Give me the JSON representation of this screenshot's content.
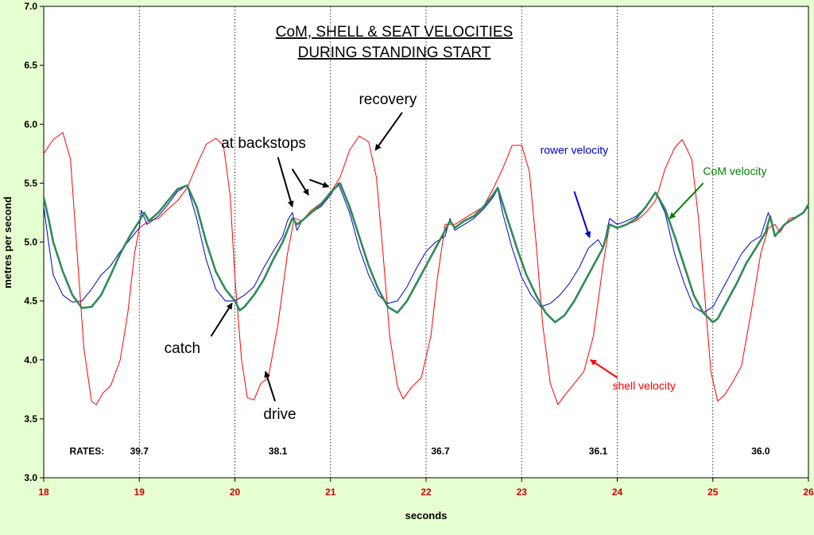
{
  "chart_data": {
    "type": "line",
    "title_line1": "CoM, SHELL & SEAT VELOCITIES",
    "title_line2": "DURING STANDING START",
    "xlabel": "seconds",
    "ylabel": "metres per second",
    "xlim": [
      18,
      26
    ],
    "ylim": [
      3.0,
      7.0
    ],
    "x_ticks": [
      "18",
      "19",
      "20",
      "21",
      "22",
      "23",
      "24",
      "25",
      "26"
    ],
    "y_ticks": [
      "3.0",
      "3.5",
      "4.0",
      "4.5",
      "5.0",
      "5.5",
      "6.0",
      "6.5",
      "7.0"
    ],
    "grid": "vertical dotted lines",
    "rates_label": "RATES:",
    "rates": [
      {
        "x": 19.0,
        "value": "39.7"
      },
      {
        "x": 20.45,
        "value": "38.1"
      },
      {
        "x": 22.15,
        "value": "36.7"
      },
      {
        "x": 23.8,
        "value": "36.1"
      },
      {
        "x": 25.5,
        "value": "36.0"
      }
    ],
    "series": [
      {
        "id": "shell",
        "color": "#ff0000",
        "points": [
          [
            18.0,
            5.75
          ],
          [
            18.1,
            5.87
          ],
          [
            18.2,
            5.93
          ],
          [
            18.28,
            5.7
          ],
          [
            18.35,
            4.9
          ],
          [
            18.42,
            4.1
          ],
          [
            18.5,
            3.65
          ],
          [
            18.55,
            3.62
          ],
          [
            18.62,
            3.72
          ],
          [
            18.7,
            3.78
          ],
          [
            18.8,
            4.0
          ],
          [
            18.88,
            4.4
          ],
          [
            18.95,
            4.9
          ],
          [
            19.0,
            5.12
          ],
          [
            19.1,
            5.18
          ],
          [
            19.2,
            5.2
          ],
          [
            19.3,
            5.28
          ],
          [
            19.4,
            5.35
          ],
          [
            19.5,
            5.46
          ],
          [
            19.6,
            5.65
          ],
          [
            19.7,
            5.83
          ],
          [
            19.8,
            5.88
          ],
          [
            19.88,
            5.82
          ],
          [
            19.95,
            5.4
          ],
          [
            20.0,
            4.7
          ],
          [
            20.07,
            4.0
          ],
          [
            20.13,
            3.68
          ],
          [
            20.2,
            3.66
          ],
          [
            20.27,
            3.8
          ],
          [
            20.35,
            3.85
          ],
          [
            20.45,
            4.3
          ],
          [
            20.55,
            4.9
          ],
          [
            20.62,
            5.2
          ],
          [
            20.7,
            5.18
          ],
          [
            20.8,
            5.27
          ],
          [
            20.9,
            5.33
          ],
          [
            21.0,
            5.42
          ],
          [
            21.1,
            5.55
          ],
          [
            21.2,
            5.78
          ],
          [
            21.3,
            5.9
          ],
          [
            21.4,
            5.85
          ],
          [
            21.48,
            5.55
          ],
          [
            21.55,
            4.9
          ],
          [
            21.62,
            4.2
          ],
          [
            21.7,
            3.78
          ],
          [
            21.76,
            3.67
          ],
          [
            21.85,
            3.77
          ],
          [
            21.95,
            3.85
          ],
          [
            22.05,
            4.2
          ],
          [
            22.12,
            4.7
          ],
          [
            22.2,
            5.15
          ],
          [
            22.3,
            5.15
          ],
          [
            22.4,
            5.2
          ],
          [
            22.5,
            5.25
          ],
          [
            22.6,
            5.3
          ],
          [
            22.7,
            5.45
          ],
          [
            22.8,
            5.62
          ],
          [
            22.9,
            5.82
          ],
          [
            23.0,
            5.82
          ],
          [
            23.08,
            5.6
          ],
          [
            23.15,
            5.0
          ],
          [
            23.22,
            4.3
          ],
          [
            23.3,
            3.8
          ],
          [
            23.38,
            3.62
          ],
          [
            23.45,
            3.7
          ],
          [
            23.55,
            3.8
          ],
          [
            23.65,
            3.9
          ],
          [
            23.75,
            4.2
          ],
          [
            23.85,
            4.8
          ],
          [
            23.92,
            5.15
          ],
          [
            24.0,
            5.12
          ],
          [
            24.1,
            5.15
          ],
          [
            24.2,
            5.18
          ],
          [
            24.3,
            5.25
          ],
          [
            24.4,
            5.35
          ],
          [
            24.5,
            5.62
          ],
          [
            24.6,
            5.8
          ],
          [
            24.68,
            5.87
          ],
          [
            24.78,
            5.7
          ],
          [
            24.85,
            5.2
          ],
          [
            24.92,
            4.5
          ],
          [
            24.98,
            3.9
          ],
          [
            25.05,
            3.65
          ],
          [
            25.12,
            3.7
          ],
          [
            25.2,
            3.8
          ],
          [
            25.3,
            3.95
          ],
          [
            25.4,
            4.4
          ],
          [
            25.5,
            4.9
          ],
          [
            25.58,
            5.12
          ],
          [
            25.65,
            5.15
          ],
          [
            25.7,
            5.08
          ],
          [
            25.8,
            5.2
          ],
          [
            25.9,
            5.22
          ],
          [
            26.0,
            5.3
          ]
        ]
      },
      {
        "id": "rower",
        "color": "#0000cc",
        "points": [
          [
            18.0,
            5.3
          ],
          [
            18.05,
            5.0
          ],
          [
            18.1,
            4.72
          ],
          [
            18.2,
            4.55
          ],
          [
            18.3,
            4.49
          ],
          [
            18.4,
            4.5
          ],
          [
            18.5,
            4.6
          ],
          [
            18.6,
            4.72
          ],
          [
            18.7,
            4.8
          ],
          [
            18.8,
            4.92
          ],
          [
            18.9,
            5.02
          ],
          [
            19.0,
            5.12
          ],
          [
            19.02,
            5.27
          ],
          [
            19.08,
            5.15
          ],
          [
            19.2,
            5.22
          ],
          [
            19.3,
            5.32
          ],
          [
            19.4,
            5.43
          ],
          [
            19.5,
            5.48
          ],
          [
            19.6,
            5.2
          ],
          [
            19.7,
            4.85
          ],
          [
            19.8,
            4.6
          ],
          [
            19.9,
            4.5
          ],
          [
            20.0,
            4.5
          ],
          [
            20.1,
            4.55
          ],
          [
            20.2,
            4.62
          ],
          [
            20.3,
            4.78
          ],
          [
            20.4,
            4.92
          ],
          [
            20.5,
            5.05
          ],
          [
            20.55,
            5.18
          ],
          [
            20.6,
            5.25
          ],
          [
            20.65,
            5.1
          ],
          [
            20.7,
            5.18
          ],
          [
            20.8,
            5.25
          ],
          [
            20.9,
            5.3
          ],
          [
            21.0,
            5.4
          ],
          [
            21.08,
            5.5
          ],
          [
            21.2,
            5.25
          ],
          [
            21.3,
            4.95
          ],
          [
            21.4,
            4.72
          ],
          [
            21.5,
            4.55
          ],
          [
            21.6,
            4.48
          ],
          [
            21.7,
            4.5
          ],
          [
            21.8,
            4.62
          ],
          [
            21.9,
            4.78
          ],
          [
            22.0,
            4.92
          ],
          [
            22.1,
            5.0
          ],
          [
            22.2,
            5.05
          ],
          [
            22.25,
            5.2
          ],
          [
            22.3,
            5.1
          ],
          [
            22.4,
            5.15
          ],
          [
            22.5,
            5.2
          ],
          [
            22.6,
            5.28
          ],
          [
            22.7,
            5.38
          ],
          [
            22.75,
            5.45
          ],
          [
            22.8,
            5.25
          ],
          [
            22.9,
            4.95
          ],
          [
            23.0,
            4.7
          ],
          [
            23.1,
            4.55
          ],
          [
            23.2,
            4.45
          ],
          [
            23.3,
            4.48
          ],
          [
            23.4,
            4.55
          ],
          [
            23.5,
            4.65
          ],
          [
            23.6,
            4.78
          ],
          [
            23.7,
            4.95
          ],
          [
            23.8,
            5.02
          ],
          [
            23.85,
            4.95
          ],
          [
            23.92,
            5.2
          ],
          [
            24.0,
            5.15
          ],
          [
            24.1,
            5.18
          ],
          [
            24.2,
            5.22
          ],
          [
            24.3,
            5.3
          ],
          [
            24.4,
            5.42
          ],
          [
            24.5,
            5.25
          ],
          [
            24.6,
            4.9
          ],
          [
            24.7,
            4.65
          ],
          [
            24.8,
            4.45
          ],
          [
            24.9,
            4.4
          ],
          [
            25.0,
            4.45
          ],
          [
            25.1,
            4.6
          ],
          [
            25.2,
            4.75
          ],
          [
            25.3,
            4.9
          ],
          [
            25.4,
            5.0
          ],
          [
            25.5,
            5.05
          ],
          [
            25.58,
            5.25
          ],
          [
            25.65,
            5.05
          ],
          [
            25.75,
            5.15
          ],
          [
            25.85,
            5.2
          ],
          [
            25.95,
            5.25
          ],
          [
            26.0,
            5.3
          ]
        ]
      },
      {
        "id": "com",
        "color": "#2e8b57",
        "points": [
          [
            18.0,
            5.38
          ],
          [
            18.05,
            5.2
          ],
          [
            18.1,
            5.0
          ],
          [
            18.2,
            4.75
          ],
          [
            18.3,
            4.55
          ],
          [
            18.4,
            4.44
          ],
          [
            18.5,
            4.45
          ],
          [
            18.6,
            4.55
          ],
          [
            18.7,
            4.72
          ],
          [
            18.8,
            4.9
          ],
          [
            18.9,
            5.05
          ],
          [
            19.0,
            5.18
          ],
          [
            19.05,
            5.25
          ],
          [
            19.1,
            5.18
          ],
          [
            19.2,
            5.25
          ],
          [
            19.3,
            5.35
          ],
          [
            19.4,
            5.45
          ],
          [
            19.5,
            5.48
          ],
          [
            19.6,
            5.3
          ],
          [
            19.7,
            5.0
          ],
          [
            19.8,
            4.75
          ],
          [
            19.9,
            4.6
          ],
          [
            20.0,
            4.5
          ],
          [
            20.05,
            4.42
          ],
          [
            20.1,
            4.45
          ],
          [
            20.2,
            4.55
          ],
          [
            20.3,
            4.68
          ],
          [
            20.4,
            4.85
          ],
          [
            20.5,
            5.0
          ],
          [
            20.6,
            5.2
          ],
          [
            20.65,
            5.15
          ],
          [
            20.7,
            5.18
          ],
          [
            20.8,
            5.25
          ],
          [
            20.9,
            5.32
          ],
          [
            21.0,
            5.42
          ],
          [
            21.1,
            5.5
          ],
          [
            21.2,
            5.3
          ],
          [
            21.3,
            5.05
          ],
          [
            21.4,
            4.8
          ],
          [
            21.5,
            4.6
          ],
          [
            21.6,
            4.45
          ],
          [
            21.7,
            4.4
          ],
          [
            21.8,
            4.5
          ],
          [
            21.9,
            4.65
          ],
          [
            22.0,
            4.8
          ],
          [
            22.1,
            4.95
          ],
          [
            22.2,
            5.1
          ],
          [
            22.25,
            5.18
          ],
          [
            22.3,
            5.12
          ],
          [
            22.4,
            5.18
          ],
          [
            22.5,
            5.22
          ],
          [
            22.6,
            5.3
          ],
          [
            22.7,
            5.4
          ],
          [
            22.75,
            5.46
          ],
          [
            22.85,
            5.2
          ],
          [
            22.95,
            4.95
          ],
          [
            23.05,
            4.72
          ],
          [
            23.15,
            4.55
          ],
          [
            23.25,
            4.4
          ],
          [
            23.35,
            4.32
          ],
          [
            23.45,
            4.38
          ],
          [
            23.55,
            4.5
          ],
          [
            23.65,
            4.65
          ],
          [
            23.75,
            4.8
          ],
          [
            23.85,
            4.95
          ],
          [
            23.92,
            5.15
          ],
          [
            24.0,
            5.12
          ],
          [
            24.1,
            5.15
          ],
          [
            24.2,
            5.2
          ],
          [
            24.3,
            5.3
          ],
          [
            24.4,
            5.42
          ],
          [
            24.5,
            5.28
          ],
          [
            24.6,
            5.05
          ],
          [
            24.7,
            4.8
          ],
          [
            24.8,
            4.55
          ],
          [
            24.9,
            4.4
          ],
          [
            25.0,
            4.32
          ],
          [
            25.05,
            4.35
          ],
          [
            25.15,
            4.5
          ],
          [
            25.25,
            4.65
          ],
          [
            25.35,
            4.82
          ],
          [
            25.45,
            4.95
          ],
          [
            25.55,
            5.08
          ],
          [
            25.6,
            5.22
          ],
          [
            25.65,
            5.05
          ],
          [
            25.75,
            5.15
          ],
          [
            25.85,
            5.2
          ],
          [
            25.95,
            5.25
          ],
          [
            26.0,
            5.32
          ]
        ]
      }
    ],
    "annotations": [
      {
        "id": "recovery",
        "text": "recovery",
        "x": 21.6,
        "y": 6.17,
        "color": "#000000",
        "arrows": [
          [
            21.75,
            6.1,
            21.47,
            5.78
          ]
        ]
      },
      {
        "id": "at-backstops",
        "text": "at backstops",
        "x": 20.3,
        "y": 5.8,
        "color": "#000000",
        "arrows": [
          [
            20.45,
            5.72,
            20.6,
            5.3
          ],
          [
            20.6,
            5.62,
            20.77,
            5.4
          ],
          [
            20.78,
            5.53,
            20.98,
            5.47
          ]
        ]
      },
      {
        "id": "catch",
        "text": "catch",
        "x": 19.45,
        "y": 4.06,
        "color": "#000000",
        "arrows": [
          [
            19.75,
            4.2,
            19.97,
            4.48
          ]
        ]
      },
      {
        "id": "drive",
        "text": "drive",
        "x": 20.47,
        "y": 3.5,
        "color": "#000000",
        "arrows": [
          [
            20.42,
            3.65,
            20.32,
            3.9
          ]
        ]
      },
      {
        "id": "rower-velocity",
        "text": "rower velocity",
        "x": 23.55,
        "y": 5.75,
        "color": "#0000cc",
        "arrows": [
          [
            23.55,
            5.43,
            23.71,
            5.04
          ]
        ]
      },
      {
        "id": "com-velocity",
        "text": "CoM velocity",
        "x": 25.23,
        "y": 5.57,
        "color": "#008000",
        "arrows": [
          [
            24.9,
            5.5,
            24.55,
            5.2
          ]
        ]
      },
      {
        "id": "shell-velocity",
        "text": "shell velocity",
        "x": 24.28,
        "y": 3.75,
        "color": "#ff0000",
        "arrows": [
          [
            24.0,
            3.85,
            23.72,
            4.0
          ]
        ]
      }
    ]
  }
}
